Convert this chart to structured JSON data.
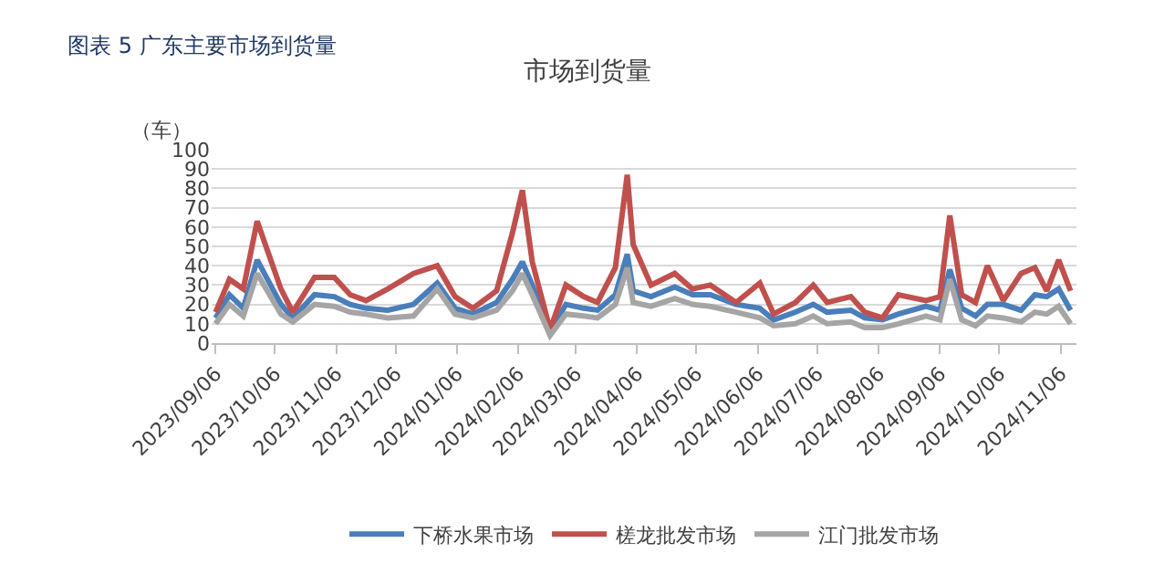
{
  "chart_data": {
    "type": "line",
    "title": "市场到货量",
    "ylabel": "（车）",
    "annotations": [
      "图表 5 广东主要市场到货量"
    ],
    "x": [
      "2023-09-06",
      "2023-09-13",
      "2023-09-20",
      "2023-09-27",
      "2023-10-09",
      "2023-10-15",
      "2023-10-26",
      "2023-11-05",
      "2023-11-13",
      "2023-11-21",
      "2023-12-02",
      "2023-12-15",
      "2023-12-27",
      "2024-01-05",
      "2024-01-14",
      "2024-01-26",
      "2024-02-03",
      "2024-02-08",
      "2024-02-13",
      "2024-02-22",
      "2024-03-01",
      "2024-03-10",
      "2024-03-17",
      "2024-03-26",
      "2024-04-01",
      "2024-04-04",
      "2024-04-13",
      "2024-04-25",
      "2024-05-04",
      "2024-05-13",
      "2024-05-26",
      "2024-06-07",
      "2024-06-14",
      "2024-06-25",
      "2024-07-04",
      "2024-07-11",
      "2024-07-23",
      "2024-07-30",
      "2024-08-08",
      "2024-08-16",
      "2024-08-30",
      "2024-09-06",
      "2024-09-11",
      "2024-09-17",
      "2024-09-24",
      "2024-09-30",
      "2024-10-08",
      "2024-10-17",
      "2024-10-24",
      "2024-10-30",
      "2024-11-05",
      "2024-11-11"
    ],
    "series": [
      {
        "name": "下桥水果市场",
        "color": "#4a7ebb",
        "values": [
          13,
          25,
          18,
          43,
          20,
          13,
          25,
          24,
          20,
          18,
          17,
          20,
          31,
          18,
          15,
          21,
          33,
          42,
          30,
          6,
          20,
          18,
          17,
          25,
          46,
          27,
          24,
          29,
          25,
          25,
          20,
          18,
          12,
          16,
          20,
          16,
          17,
          13,
          12,
          15,
          19,
          17,
          38,
          18,
          14,
          20,
          20,
          17,
          25,
          24,
          28,
          17
        ]
      },
      {
        "name": "槎龙批发市场",
        "color": "#c0504d",
        "values": [
          16,
          33,
          28,
          63,
          28,
          16,
          34,
          34,
          25,
          22,
          28,
          36,
          40,
          24,
          18,
          27,
          57,
          79,
          42,
          7,
          30,
          24,
          21,
          39,
          87,
          51,
          30,
          36,
          28,
          30,
          21,
          31,
          15,
          21,
          30,
          21,
          24,
          16,
          13,
          25,
          22,
          24,
          66,
          25,
          21,
          40,
          22,
          36,
          39,
          27,
          43,
          27
        ]
      },
      {
        "name": "江门批发市场",
        "color": "#a5a5a5",
        "values": [
          10,
          20,
          14,
          36,
          15,
          11,
          20,
          19,
          16,
          15,
          13,
          14,
          28,
          15,
          13,
          17,
          27,
          36,
          25,
          4,
          15,
          14,
          13,
          20,
          39,
          21,
          19,
          23,
          20,
          19,
          16,
          13,
          9,
          10,
          14,
          10,
          11,
          8,
          8,
          10,
          14,
          12,
          33,
          12,
          9,
          14,
          13,
          11,
          16,
          15,
          19,
          10
        ]
      }
    ],
    "xlim": [
      "2023-09-04",
      "2024-11-14"
    ],
    "xticks": [
      {
        "value": "2023-09-06",
        "label": "2023/09/06"
      },
      {
        "value": "2023-10-06",
        "label": "2023/10/06"
      },
      {
        "value": "2023-11-06",
        "label": "2023/11/06"
      },
      {
        "value": "2023-12-06",
        "label": "2023/12/06"
      },
      {
        "value": "2024-01-06",
        "label": "2024/01/06"
      },
      {
        "value": "2024-02-06",
        "label": "2024/02/06"
      },
      {
        "value": "2024-03-06",
        "label": "2024/03/06"
      },
      {
        "value": "2024-04-06",
        "label": "2024/04/06"
      },
      {
        "value": "2024-05-06",
        "label": "2024/05/06"
      },
      {
        "value": "2024-06-06",
        "label": "2024/06/06"
      },
      {
        "value": "2024-07-06",
        "label": "2024/07/06"
      },
      {
        "value": "2024-08-06",
        "label": "2024/08/06"
      },
      {
        "value": "2024-09-06",
        "label": "2024/09/06"
      },
      {
        "value": "2024-10-06",
        "label": "2024/10/06"
      },
      {
        "value": "2024-11-06",
        "label": "2024/11/06"
      }
    ],
    "ylim": [
      0,
      100
    ],
    "yticks": [
      0,
      10,
      20,
      30,
      40,
      50,
      60,
      70,
      80,
      90,
      100
    ],
    "grid": "y",
    "legend": "bottom",
    "marker": "none",
    "line_style": "solid"
  }
}
